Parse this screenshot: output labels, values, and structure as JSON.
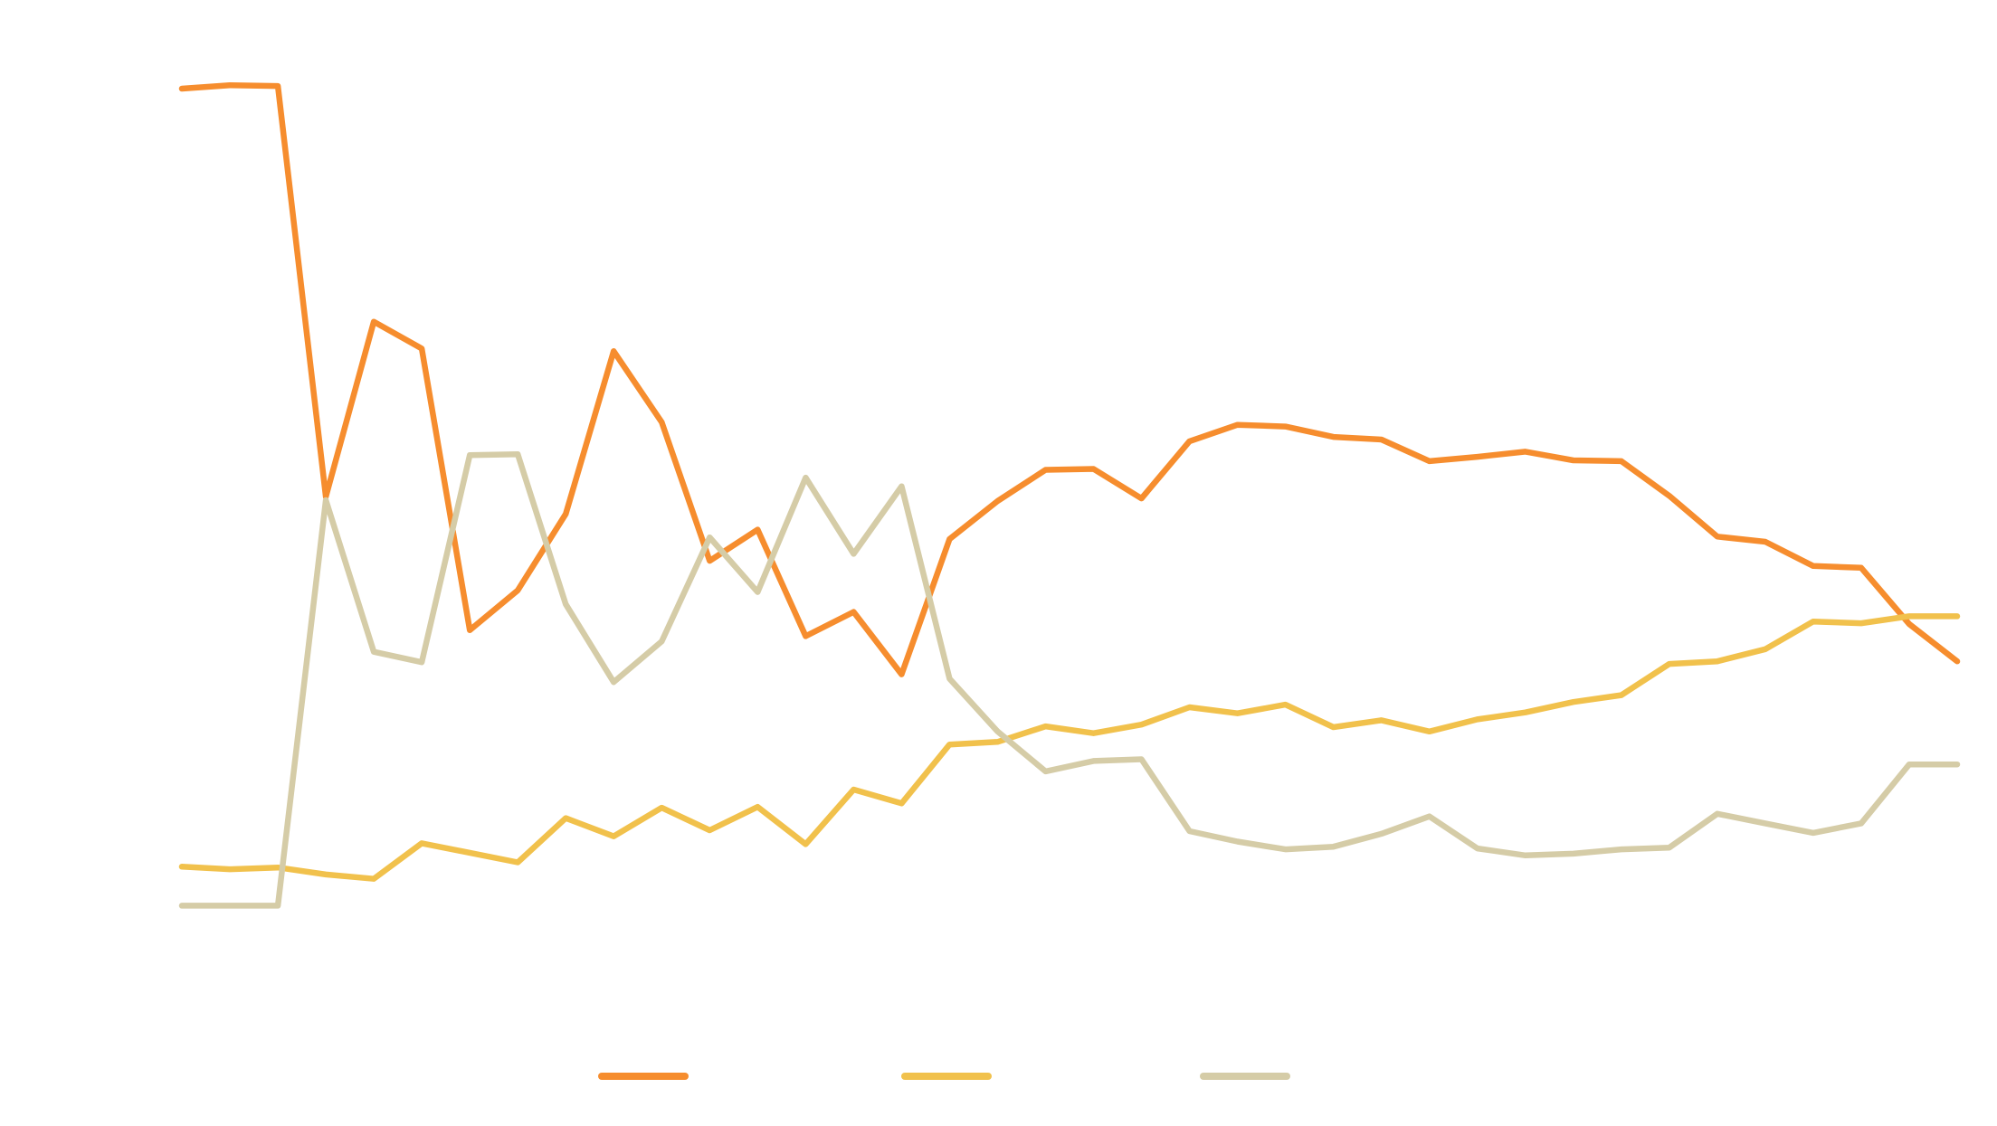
{
  "chart_data": {
    "type": "line",
    "title": "",
    "xlabel": "",
    "ylabel": "",
    "x": [
      1,
      2,
      3,
      4,
      5,
      6,
      7,
      8,
      9,
      10,
      11,
      12,
      13,
      14,
      15,
      16,
      17,
      18,
      19,
      20,
      21,
      22,
      23,
      24,
      25,
      26,
      27,
      28,
      29,
      30,
      31,
      32,
      33,
      34,
      35,
      36,
      37,
      38
    ],
    "xlim": [
      1,
      38
    ],
    "ylim": [
      0,
      100
    ],
    "grid": false,
    "legend_position": "bottom-center",
    "series": [
      {
        "color": "#F68D2E",
        "values": [
          95.2,
          95.6,
          95.5,
          48.1,
          68.3,
          65.2,
          32.7,
          37.3,
          46.1,
          64.9,
          56.7,
          40.7,
          44.3,
          32.0,
          34.8,
          27.6,
          43.2,
          47.6,
          51.2,
          51.3,
          47.9,
          54.5,
          56.4,
          56.2,
          55.0,
          54.7,
          52.2,
          52.7,
          53.3,
          52.3,
          52.2,
          48.2,
          43.5,
          42.9,
          40.1,
          39.9,
          33.4,
          29.1
        ],
        "line_width": 6.5
      },
      {
        "color": "#F1C14C",
        "values": [
          5.4,
          5.1,
          5.3,
          4.5,
          4.0,
          8.1,
          7.0,
          5.9,
          11.0,
          8.9,
          12.2,
          9.6,
          12.3,
          8.0,
          14.3,
          12.7,
          19.5,
          19.8,
          21.6,
          20.8,
          21.8,
          23.8,
          23.1,
          24.1,
          21.5,
          22.3,
          21.0,
          22.4,
          23.2,
          24.4,
          25.2,
          28.8,
          29.1,
          30.5,
          33.7,
          33.5,
          34.3,
          34.3
        ],
        "line_width": 6.5
      },
      {
        "color": "#D5CCA7",
        "values": [
          0.9,
          0.9,
          0.9,
          47.7,
          30.2,
          29.0,
          52.9,
          53.0,
          35.7,
          26.7,
          31.4,
          43.4,
          37.1,
          50.3,
          41.5,
          49.3,
          27.1,
          21.0,
          16.4,
          17.6,
          17.8,
          9.5,
          8.3,
          7.4,
          7.7,
          9.2,
          11.2,
          7.5,
          6.7,
          6.9,
          7.4,
          7.6,
          11.5,
          10.4,
          9.3,
          10.4,
          17.2,
          17.2
        ],
        "line_width": 6.5
      }
    ]
  }
}
